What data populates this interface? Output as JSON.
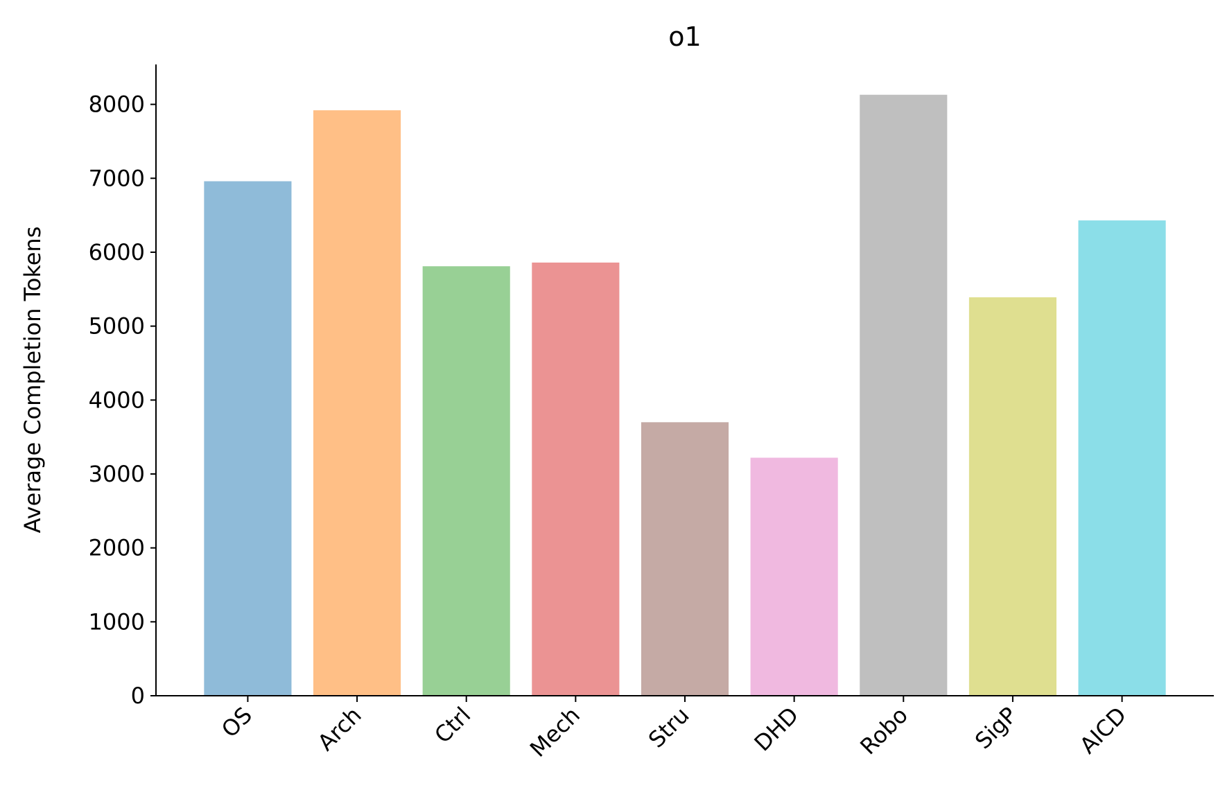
{
  "chart_data": {
    "type": "bar",
    "title": "o1",
    "y_label": "Average Completion Tokens",
    "categories": [
      "OS",
      "Arch",
      "Ctrl",
      "Mech",
      "Stru",
      "DHD",
      "Robo",
      "SigP",
      "AICD"
    ],
    "values": [
      6960,
      7920,
      5810,
      5860,
      3700,
      3220,
      8130,
      5390,
      6430
    ],
    "colors": [
      "#8fbbd9",
      "#ffbf86",
      "#98d095",
      "#eb9393",
      "#c5aaa5",
      "#f0b9e0",
      "#bfbfbf",
      "#dfdf90",
      "#8bdee8"
    ],
    "ylim": [
      0,
      8540
    ],
    "yticks": [
      0,
      1000,
      2000,
      3000,
      4000,
      5000,
      6000,
      7000,
      8000
    ]
  }
}
